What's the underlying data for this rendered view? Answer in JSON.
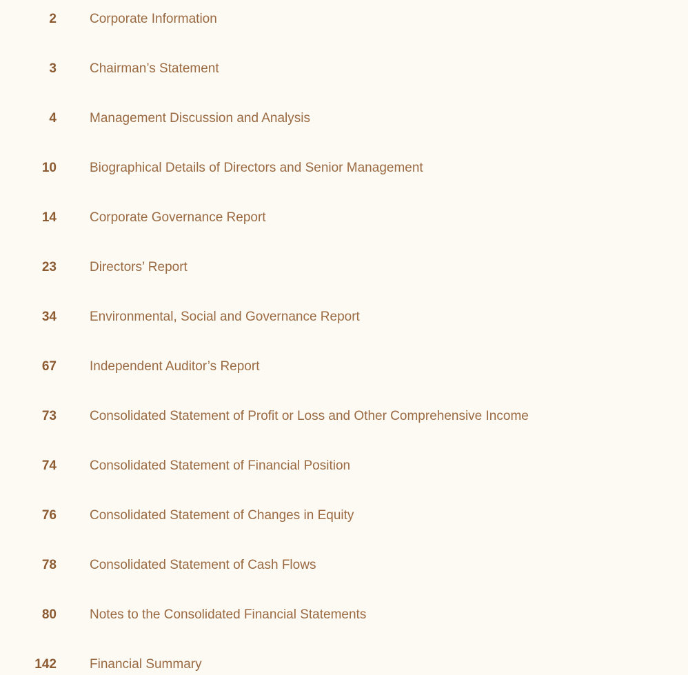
{
  "entries": [
    {
      "page": 2,
      "title": "Corporate Information"
    },
    {
      "page": 3,
      "title": "Chairman’s Statement"
    },
    {
      "page": 4,
      "title": "Management Discussion and Analysis"
    },
    {
      "page": 10,
      "title": "Biographical Details of Directors and Senior Management"
    },
    {
      "page": 14,
      "title": "Corporate Governance Report"
    },
    {
      "page": 23,
      "title": "Directors’ Report"
    },
    {
      "page": 34,
      "title": "Environmental, Social and Governance Report"
    },
    {
      "page": 67,
      "title": "Independent Auditor’s Report"
    },
    {
      "page": 73,
      "title": "Consolidated Statement of Profit or Loss and Other Comprehensive Income"
    },
    {
      "page": 74,
      "title": "Consolidated Statement of Financial Position"
    },
    {
      "page": 76,
      "title": "Consolidated Statement of Changes in Equity"
    },
    {
      "page": 78,
      "title": "Consolidated Statement of Cash Flows"
    },
    {
      "page": 80,
      "title": "Notes to the Consolidated Financial Statements"
    },
    {
      "page": 142,
      "title": "Financial Summary"
    }
  ]
}
